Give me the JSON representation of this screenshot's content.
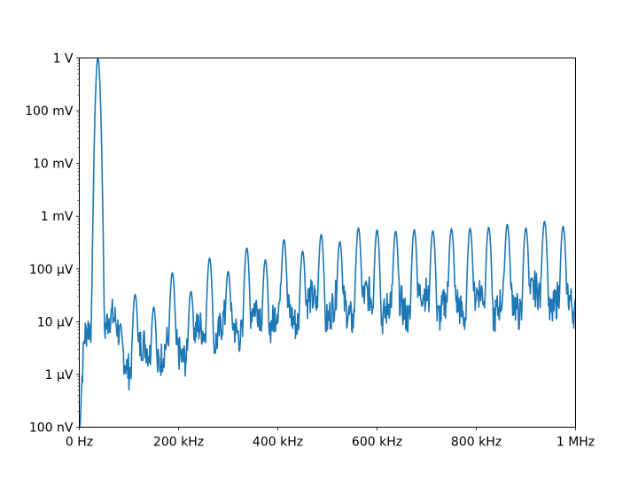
{
  "chart_data": {
    "type": "line",
    "title": "",
    "xlabel": "",
    "ylabel": "",
    "xscale": "linear",
    "yscale": "log",
    "xlim": [
      0,
      1000000
    ],
    "ylim": [
      1e-07,
      1
    ],
    "grid": false,
    "legend": null,
    "line_color": "#1f77b4",
    "x_ticks": [
      {
        "value": 0,
        "label": "0 Hz"
      },
      {
        "value": 200000,
        "label": "200 kHz"
      },
      {
        "value": 400000,
        "label": "400 kHz"
      },
      {
        "value": 600000,
        "label": "600 kHz"
      },
      {
        "value": 800000,
        "label": "800 kHz"
      },
      {
        "value": 1000000,
        "label": "1 MHz"
      }
    ],
    "y_ticks": [
      {
        "value": 1e-07,
        "label": "100 nV"
      },
      {
        "value": 1e-06,
        "label": "1 µV"
      },
      {
        "value": 1e-05,
        "label": "10 µV"
      },
      {
        "value": 0.0001,
        "label": "100 µV"
      },
      {
        "value": 0.001,
        "label": "1 mV"
      },
      {
        "value": 0.01,
        "label": "10 mV"
      },
      {
        "value": 0.1,
        "label": "100 mV"
      },
      {
        "value": 1,
        "label": "1 V"
      }
    ],
    "fundamental_hz": 37500,
    "peaks": [
      {
        "x": 37500,
        "y": 1.0
      },
      {
        "x": 112500,
        "y": 3.3e-05
      },
      {
        "x": 150000,
        "y": 1.9e-05
      },
      {
        "x": 187500,
        "y": 8.5e-05
      },
      {
        "x": 225000,
        "y": 3.8e-05
      },
      {
        "x": 262500,
        "y": 0.00016
      },
      {
        "x": 300000,
        "y": 9e-05
      },
      {
        "x": 337500,
        "y": 0.00025
      },
      {
        "x": 375000,
        "y": 0.00015
      },
      {
        "x": 412500,
        "y": 0.00036
      },
      {
        "x": 450000,
        "y": 0.00022
      },
      {
        "x": 487500,
        "y": 0.00045
      },
      {
        "x": 525000,
        "y": 0.00033
      },
      {
        "x": 562500,
        "y": 0.0006
      },
      {
        "x": 600000,
        "y": 0.00055
      },
      {
        "x": 637500,
        "y": 0.00052
      },
      {
        "x": 675000,
        "y": 0.00056
      },
      {
        "x": 712500,
        "y": 0.00053
      },
      {
        "x": 750000,
        "y": 0.00058
      },
      {
        "x": 787500,
        "y": 0.00059
      },
      {
        "x": 825000,
        "y": 0.00062
      },
      {
        "x": 862500,
        "y": 0.0007
      },
      {
        "x": 900000,
        "y": 0.0006
      },
      {
        "x": 937500,
        "y": 0.0008
      },
      {
        "x": 975000,
        "y": 0.00065
      }
    ],
    "noise_floor": [
      {
        "x": 0,
        "y": 1e-07
      },
      {
        "x": 10000,
        "y": 3e-06
      },
      {
        "x": 30000,
        "y": 9e-06
      },
      {
        "x": 60000,
        "y": 1e-05
      },
      {
        "x": 100000,
        "y": 2e-06
      },
      {
        "x": 200000,
        "y": 3e-06
      },
      {
        "x": 300000,
        "y": 8e-06
      },
      {
        "x": 400000,
        "y": 1.5e-05
      },
      {
        "x": 600000,
        "y": 2e-05
      },
      {
        "x": 800000,
        "y": 2.2e-05
      },
      {
        "x": 1000000,
        "y": 2.5e-05
      }
    ]
  }
}
